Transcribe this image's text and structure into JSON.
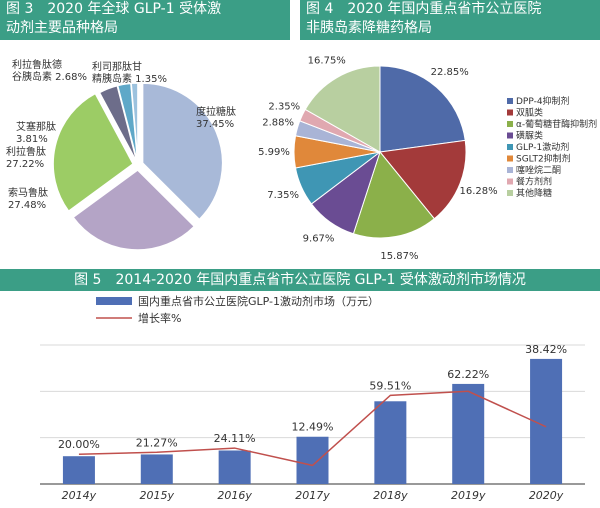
{
  "figures": {
    "fig3": {
      "line1": "图 3　2020 年全球 GLP-1 受体激",
      "line2": "动剂主要品种格局"
    },
    "fig4": {
      "line1": "图 4　2020 年国内重点省市公立医院",
      "line2": "非胰岛素降糖药格局"
    },
    "fig5": {
      "title": "图 5　2014-2020 年国内重点省市公立医院 GLP-1 受体激动剂市场情况"
    }
  },
  "chart_data": [
    {
      "type": "pie",
      "title": "2020 年全球 GLP-1 受体激动剂主要品种格局",
      "slices": [
        {
          "label": "度拉糖肽",
          "value": 37.45,
          "label_text": "度拉糖肽 37.45%",
          "color": "#a8b9d8"
        },
        {
          "label": "索马鲁肽",
          "value": 27.48,
          "label_text": "索马鲁肽 27.48%",
          "color": "#b4a4c6"
        },
        {
          "label": "利拉鲁肽",
          "value": 27.22,
          "label_text": "利拉鲁肽 27.22%",
          "color": "#9ccc65"
        },
        {
          "label": "艾塞那肽",
          "value": 3.81,
          "label_text": "艾塞那肽 3.81%",
          "color": "#6d6d8a"
        },
        {
          "label": "利拉鲁肽德谷胰岛素",
          "value": 2.68,
          "label_text": "利拉鲁肽德谷胰岛素 2.68%",
          "color": "#5fa8c8"
        },
        {
          "label": "利司那肽甘精胰岛素",
          "value": 1.35,
          "label_text": "利司那肽甘精胰岛素 1.35%",
          "color": "#9cc2de"
        }
      ]
    },
    {
      "type": "pie",
      "title": "2020 年国内重点省市公立医院非胰岛素降糖药格局",
      "slices": [
        {
          "label": "DPP-4抑制剂",
          "value": 22.85,
          "color": "#4f6aa8"
        },
        {
          "label": "双胍类",
          "value": 16.28,
          "color": "#a33a3a"
        },
        {
          "label": "α-葡萄糖苷酶抑制剂",
          "value": 15.87,
          "color": "#8bb04a"
        },
        {
          "label": "磺脲类",
          "value": 9.67,
          "color": "#6a4c93"
        },
        {
          "label": "GLP-1激动剂",
          "value": 7.35,
          "color": "#3f96b4"
        },
        {
          "label": "SGLT2抑制剂",
          "value": 5.99,
          "color": "#e0883a"
        },
        {
          "label": "噻唑烷二酮",
          "value": 2.88,
          "color": "#a9b4d6"
        },
        {
          "label": "餐方剂剂",
          "value": 2.35,
          "color": "#e0a8b0"
        },
        {
          "label": "其他降糖",
          "value": 16.75,
          "color": "#b8cfa0"
        }
      ],
      "value_labels": [
        "22.85%",
        "16.28%",
        "15.87%",
        "9.67%",
        "7.35%",
        "5.99%",
        "2.88%",
        "2.35%",
        "16.75%"
      ],
      "legend": "right"
    },
    {
      "type": "bar",
      "categories": [
        "2014y",
        "2015y",
        "2016y",
        "2017y",
        "2018y",
        "2019y",
        "2020y"
      ],
      "series": [
        {
          "name": "国内重点省市公立医院GLP-1激动剂市场（万元）",
          "type": "bar",
          "color": "#4f6fb5",
          "values": [
            20.0,
            21.27,
            24.11,
            34.0,
            59.51,
            72.0,
            90.0
          ]
        },
        {
          "name": "增长率%",
          "type": "line",
          "color": "#c0504d",
          "values": [
            20.0,
            21.27,
            24.11,
            12.49,
            59.51,
            62.22,
            38.42
          ]
        }
      ],
      "data_labels": [
        "20.00%",
        "21.27%",
        "24.11%",
        "12.49%",
        "59.51%",
        "62.22%",
        "38.42%"
      ],
      "grid": true,
      "legend": "top-left"
    }
  ]
}
